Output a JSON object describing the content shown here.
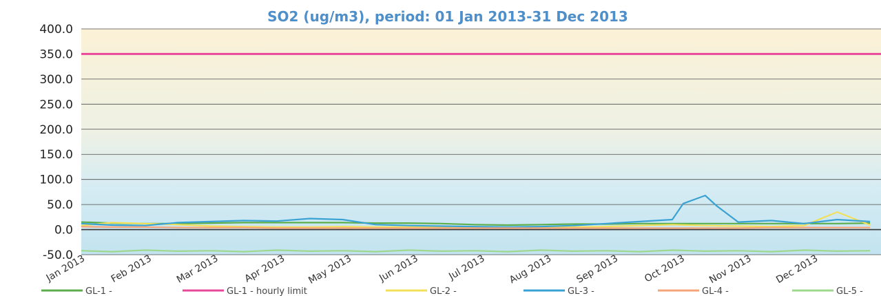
{
  "chart_data": {
    "type": "line",
    "title": "SO2 (ug/m3), period: 01 Jan 2013-31 Dec 2013",
    "xlabel": "",
    "ylabel": "",
    "ylim": [
      -50,
      400
    ],
    "y_ticks": [
      "400.0",
      "350.0",
      "300.0",
      "250.0",
      "200.0",
      "150.0",
      "100.0",
      "50.0",
      "0.0",
      "-50.0"
    ],
    "y_tick_values": [
      400,
      350,
      300,
      250,
      200,
      150,
      100,
      50,
      0,
      -50
    ],
    "x_ticks": [
      "Jan 2013",
      "Feb 2013",
      "Mar 2013",
      "Apr 2013",
      "May 2013",
      "Jun 2013",
      "Jul 2013",
      "Aug 2013",
      "Sep 2013",
      "Oct 2013",
      "Nov 2013",
      "Dec 2013"
    ],
    "grid": true,
    "legend_position": "bottom",
    "series": [
      {
        "name": "GL-1 -",
        "color": "#5cae4c",
        "x": [
          1,
          15,
          30,
          45,
          60,
          75,
          90,
          105,
          120,
          135,
          150,
          165,
          180,
          195,
          210,
          225,
          240,
          255,
          270,
          285,
          300,
          315,
          330,
          345,
          360
        ],
        "y": [
          15,
          13,
          12,
          12,
          13,
          14,
          14,
          14,
          14,
          13,
          13,
          12,
          10,
          9,
          10,
          11,
          11,
          12,
          12,
          12,
          12,
          12,
          12,
          12,
          13
        ]
      },
      {
        "name": "GL-1 - hourly limit",
        "color": "#e8479a",
        "x": [
          1,
          365
        ],
        "y": [
          350,
          350
        ]
      },
      {
        "name": "GL-2 -",
        "color": "#f3e05a",
        "x": [
          1,
          15,
          30,
          45,
          60,
          75,
          90,
          105,
          120,
          135,
          150,
          165,
          180,
          195,
          210,
          225,
          240,
          255,
          270,
          285,
          300,
          315,
          330,
          345,
          360
        ],
        "y": [
          8,
          14,
          12,
          10,
          7,
          6,
          5,
          5,
          6,
          5,
          5,
          5,
          4,
          4,
          4,
          5,
          6,
          8,
          10,
          8,
          7,
          6,
          8,
          35,
          9
        ]
      },
      {
        "name": "GL-3 -",
        "color": "#3aa2d2",
        "x": [
          1,
          15,
          30,
          45,
          60,
          75,
          90,
          105,
          120,
          135,
          150,
          165,
          180,
          195,
          210,
          225,
          240,
          255,
          270,
          275,
          285,
          290,
          300,
          315,
          330,
          345,
          360
        ],
        "y": [
          12,
          9,
          8,
          14,
          16,
          18,
          17,
          22,
          20,
          10,
          8,
          7,
          6,
          5,
          6,
          8,
          12,
          16,
          20,
          52,
          68,
          48,
          15,
          18,
          12,
          20,
          16
        ]
      },
      {
        "name": "GL-4 -",
        "color": "#f4a57a",
        "x": [
          1,
          15,
          30,
          45,
          60,
          75,
          90,
          105,
          120,
          135,
          150,
          165,
          180,
          195,
          210,
          225,
          240,
          255,
          270,
          285,
          300,
          315,
          330,
          345,
          360
        ],
        "y": [
          6,
          5,
          5,
          4,
          4,
          4,
          3,
          3,
          3,
          3,
          3,
          3,
          3,
          3,
          3,
          3,
          3,
          3,
          3,
          3,
          3,
          4,
          4,
          4,
          4
        ]
      },
      {
        "name": "GL-5 -",
        "color": "#9fd88f",
        "x": [
          1,
          15,
          30,
          45,
          60,
          75,
          90,
          105,
          120,
          135,
          150,
          165,
          180,
          195,
          210,
          225,
          240,
          255,
          270,
          285,
          300,
          315,
          330,
          345,
          360
        ],
        "y": [
          -42,
          -44,
          -41,
          -43,
          -42,
          -44,
          -41,
          -43,
          -42,
          -44,
          -41,
          -43,
          -42,
          -44,
          -41,
          -43,
          -42,
          -44,
          -41,
          -43,
          -42,
          -44,
          -41,
          -43,
          -42
        ]
      }
    ]
  }
}
